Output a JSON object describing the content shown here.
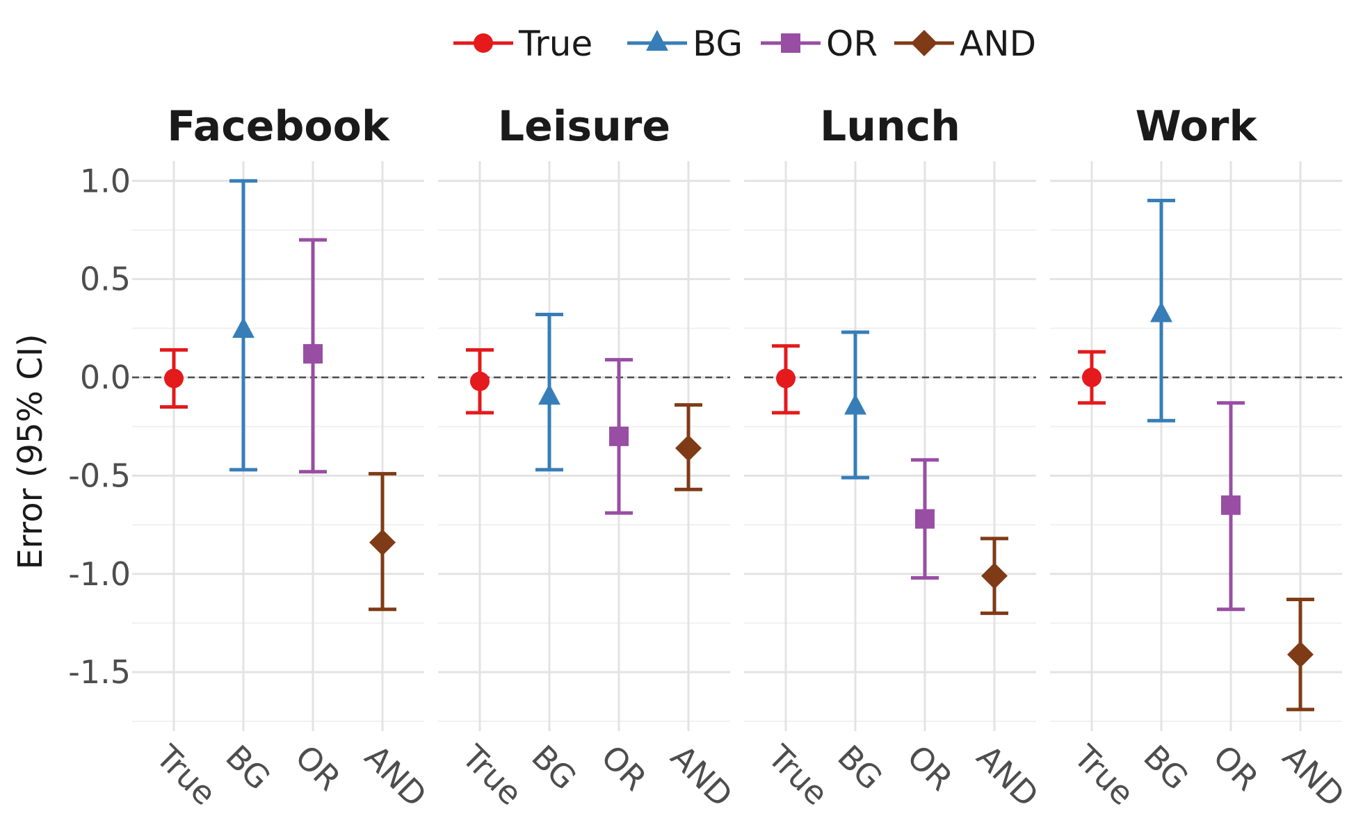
{
  "chart_data": {
    "type": "errorbar",
    "facet_by": "panel",
    "panels": [
      "Facebook",
      "Leisure",
      "Lunch",
      "Work"
    ],
    "categories": [
      "True",
      "BG",
      "OR",
      "AND"
    ],
    "ylabel": "Error (95% CI)",
    "ylim": [
      -1.8,
      1.1
    ],
    "yticks": [
      1.0,
      0.5,
      0.0,
      -0.5,
      -1.0,
      -1.5
    ],
    "ytick_labels": [
      "1.0",
      "0.5",
      "0.0",
      "-0.5",
      "-1.0",
      "-1.5"
    ],
    "reference_line": 0,
    "legend_position": "top",
    "legend": [
      "True",
      "BG",
      "OR",
      "AND"
    ],
    "series_style": {
      "True": {
        "color": "#e41a1c",
        "marker": "circle"
      },
      "BG": {
        "color": "#377eb8",
        "marker": "triangle"
      },
      "OR": {
        "color": "#984ea3",
        "marker": "square"
      },
      "AND": {
        "color": "#7f3b16",
        "marker": "diamond"
      }
    },
    "data": {
      "Facebook": {
        "True": {
          "est": -0.005,
          "lower": -0.15,
          "upper": 0.14
        },
        "BG": {
          "est": 0.24,
          "lower": -0.47,
          "upper": 1.0
        },
        "OR": {
          "est": 0.12,
          "lower": -0.48,
          "upper": 0.7
        },
        "AND": {
          "est": -0.84,
          "lower": -1.18,
          "upper": -0.49
        }
      },
      "Leisure": {
        "True": {
          "est": -0.02,
          "lower": -0.18,
          "upper": 0.14
        },
        "BG": {
          "est": -0.1,
          "lower": -0.47,
          "upper": 0.32
        },
        "OR": {
          "est": -0.3,
          "lower": -0.69,
          "upper": 0.09
        },
        "AND": {
          "est": -0.36,
          "lower": -0.57,
          "upper": -0.14
        }
      },
      "Lunch": {
        "True": {
          "est": -0.005,
          "lower": -0.18,
          "upper": 0.16
        },
        "BG": {
          "est": -0.15,
          "lower": -0.51,
          "upper": 0.23
        },
        "OR": {
          "est": -0.72,
          "lower": -1.02,
          "upper": -0.42
        },
        "AND": {
          "est": -1.01,
          "lower": -1.2,
          "upper": -0.82
        }
      },
      "Work": {
        "True": {
          "est": 0.0,
          "lower": -0.13,
          "upper": 0.13
        },
        "BG": {
          "est": 0.32,
          "lower": -0.22,
          "upper": 0.9
        },
        "OR": {
          "est": -0.65,
          "lower": -1.18,
          "upper": -0.13
        },
        "AND": {
          "est": -1.41,
          "lower": -1.69,
          "upper": -1.13
        }
      }
    }
  }
}
